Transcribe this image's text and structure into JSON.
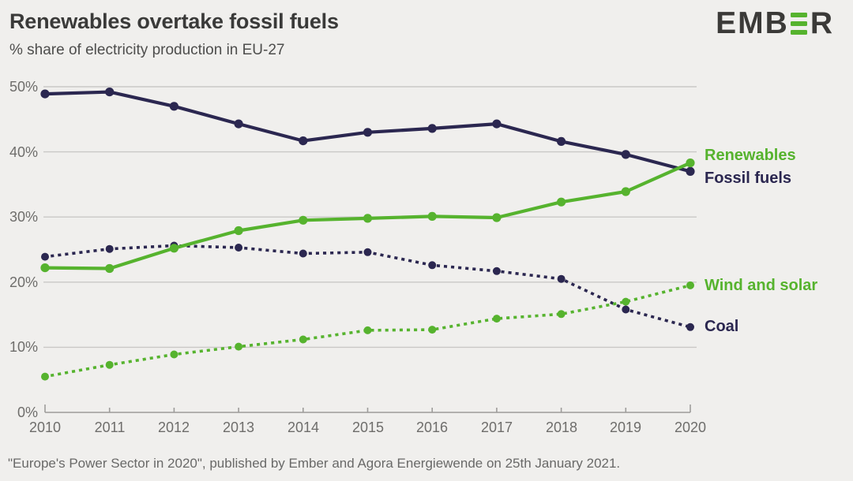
{
  "header": {
    "title": "Renewables overtake fossil fuels",
    "subtitle": "% share of electricity production in EU-27"
  },
  "logo": {
    "name": "EMBER",
    "text_before": "EMB",
    "text_after": "R"
  },
  "caption": "\"Europe's Power Sector in 2020\", published by Ember and Agora Energiewende on 25th January 2021.",
  "colors": {
    "background": "#f0efed",
    "green": "#56b32e",
    "navy": "#2b2750",
    "grid": "#c9c8c6",
    "axis": "#9d9c9a",
    "tick_text": "#6e6d6b"
  },
  "chart_data": {
    "type": "line",
    "title": "Renewables overtake fossil fuels",
    "subtitle": "% share of electricity production in EU-27",
    "xlabel": "",
    "ylabel": "% share of electricity production",
    "categories": [
      "2010",
      "2011",
      "2012",
      "2013",
      "2014",
      "2015",
      "2016",
      "2017",
      "2018",
      "2019",
      "2020"
    ],
    "ylim": [
      0,
      50
    ],
    "grid": "horizontal",
    "legend_position": "right-end-labels",
    "y_ticks": [
      {
        "label": "0%",
        "value": 0
      },
      {
        "label": "10%",
        "value": 10
      },
      {
        "label": "20%",
        "value": 20
      },
      {
        "label": "30%",
        "value": 30
      },
      {
        "label": "40%",
        "value": 40
      },
      {
        "label": "50%",
        "value": 50
      }
    ],
    "series": [
      {
        "id": "fossil-fuels",
        "name": "Fossil fuels",
        "style": "solid",
        "color": "#2b2750",
        "values": [
          48.9,
          49.2,
          47.0,
          44.3,
          41.7,
          43.0,
          43.6,
          44.3,
          41.6,
          39.6,
          37.0
        ]
      },
      {
        "id": "renewables",
        "name": "Renewables",
        "style": "solid",
        "color": "#56b32e",
        "values": [
          22.2,
          22.1,
          25.2,
          27.9,
          29.5,
          29.8,
          30.1,
          29.9,
          32.3,
          33.9,
          38.3
        ]
      },
      {
        "id": "coal",
        "name": "Coal",
        "style": "dotted",
        "color": "#2b2750",
        "values": [
          23.9,
          25.1,
          25.6,
          25.3,
          24.4,
          24.6,
          22.6,
          21.7,
          20.5,
          15.8,
          13.1
        ]
      },
      {
        "id": "wind-and-solar",
        "name": "Wind and solar",
        "style": "dotted",
        "color": "#56b32e",
        "values": [
          5.5,
          7.3,
          8.9,
          10.1,
          11.2,
          12.6,
          12.7,
          14.4,
          15.1,
          17.0,
          19.5
        ]
      }
    ]
  }
}
